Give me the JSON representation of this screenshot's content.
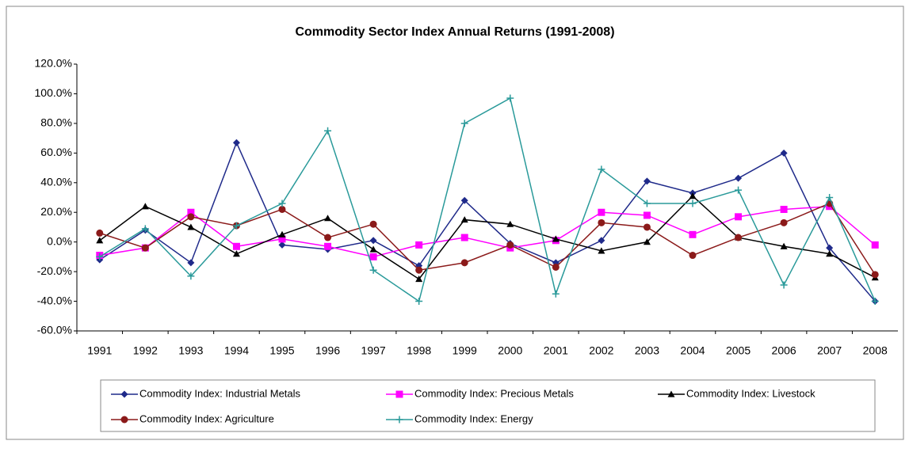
{
  "chart_data": {
    "type": "line",
    "title": "Commodity Sector Index Annual Returns (1991-2008)",
    "categories": [
      "1991",
      "1992",
      "1993",
      "1994",
      "1995",
      "1996",
      "1997",
      "1998",
      "1999",
      "2000",
      "2001",
      "2002",
      "2003",
      "2004",
      "2005",
      "2006",
      "2007",
      "2008"
    ],
    "series": [
      {
        "name": "Commodity Index: Industrial Metals",
        "color": "#1f2a8a",
        "marker": "diamond",
        "values": [
          -12,
          8,
          -14,
          67,
          -2,
          -5,
          1,
          -16,
          28,
          -1,
          -14,
          1,
          41,
          33,
          43,
          60,
          -4,
          -40
        ]
      },
      {
        "name": "Commodity Index: Precious Metals",
        "color": "#ff00ff",
        "marker": "square",
        "values": [
          -9,
          -4,
          20,
          -3,
          2,
          -3,
          -10,
          -2,
          3,
          -4,
          1,
          20,
          18,
          5,
          17,
          22,
          24,
          -2
        ]
      },
      {
        "name": "Commodity Index: Livestock",
        "color": "#000000",
        "marker": "triangle",
        "values": [
          1,
          24,
          10,
          -8,
          5,
          16,
          -5,
          -25,
          15,
          12,
          2,
          -6,
          0,
          31,
          3,
          -3,
          -8,
          -24
        ]
      },
      {
        "name": "Commodity Index: Agriculture",
        "color": "#8b1a1a",
        "marker": "circle",
        "values": [
          6,
          -4,
          17,
          11,
          22,
          3,
          12,
          -19,
          -14,
          -2,
          -17,
          13,
          10,
          -9,
          3,
          13,
          26,
          -22
        ]
      },
      {
        "name": "Commodity Index: Energy",
        "color": "#2a9a9a",
        "marker": "plus",
        "values": [
          -10,
          9,
          -23,
          11,
          26,
          75,
          -19,
          -40,
          80,
          97,
          -35,
          49,
          26,
          26,
          35,
          -29,
          30,
          -40
        ]
      }
    ],
    "ylim": [
      -60,
      120
    ],
    "yticks": [
      {
        "value": -60,
        "label": "-60.0%"
      },
      {
        "value": -40,
        "label": "-40.0%"
      },
      {
        "value": -20,
        "label": "-20.0%"
      },
      {
        "value": 0,
        "label": "0.0%"
      },
      {
        "value": 20,
        "label": "20.0%"
      },
      {
        "value": 40,
        "label": "40.0%"
      },
      {
        "value": 60,
        "label": "60.0%"
      },
      {
        "value": 80,
        "label": "80.0%"
      },
      {
        "value": 100,
        "label": "100.0%"
      },
      {
        "value": 120,
        "label": "120.0%"
      }
    ],
    "grid": false,
    "legend": "bottom"
  }
}
